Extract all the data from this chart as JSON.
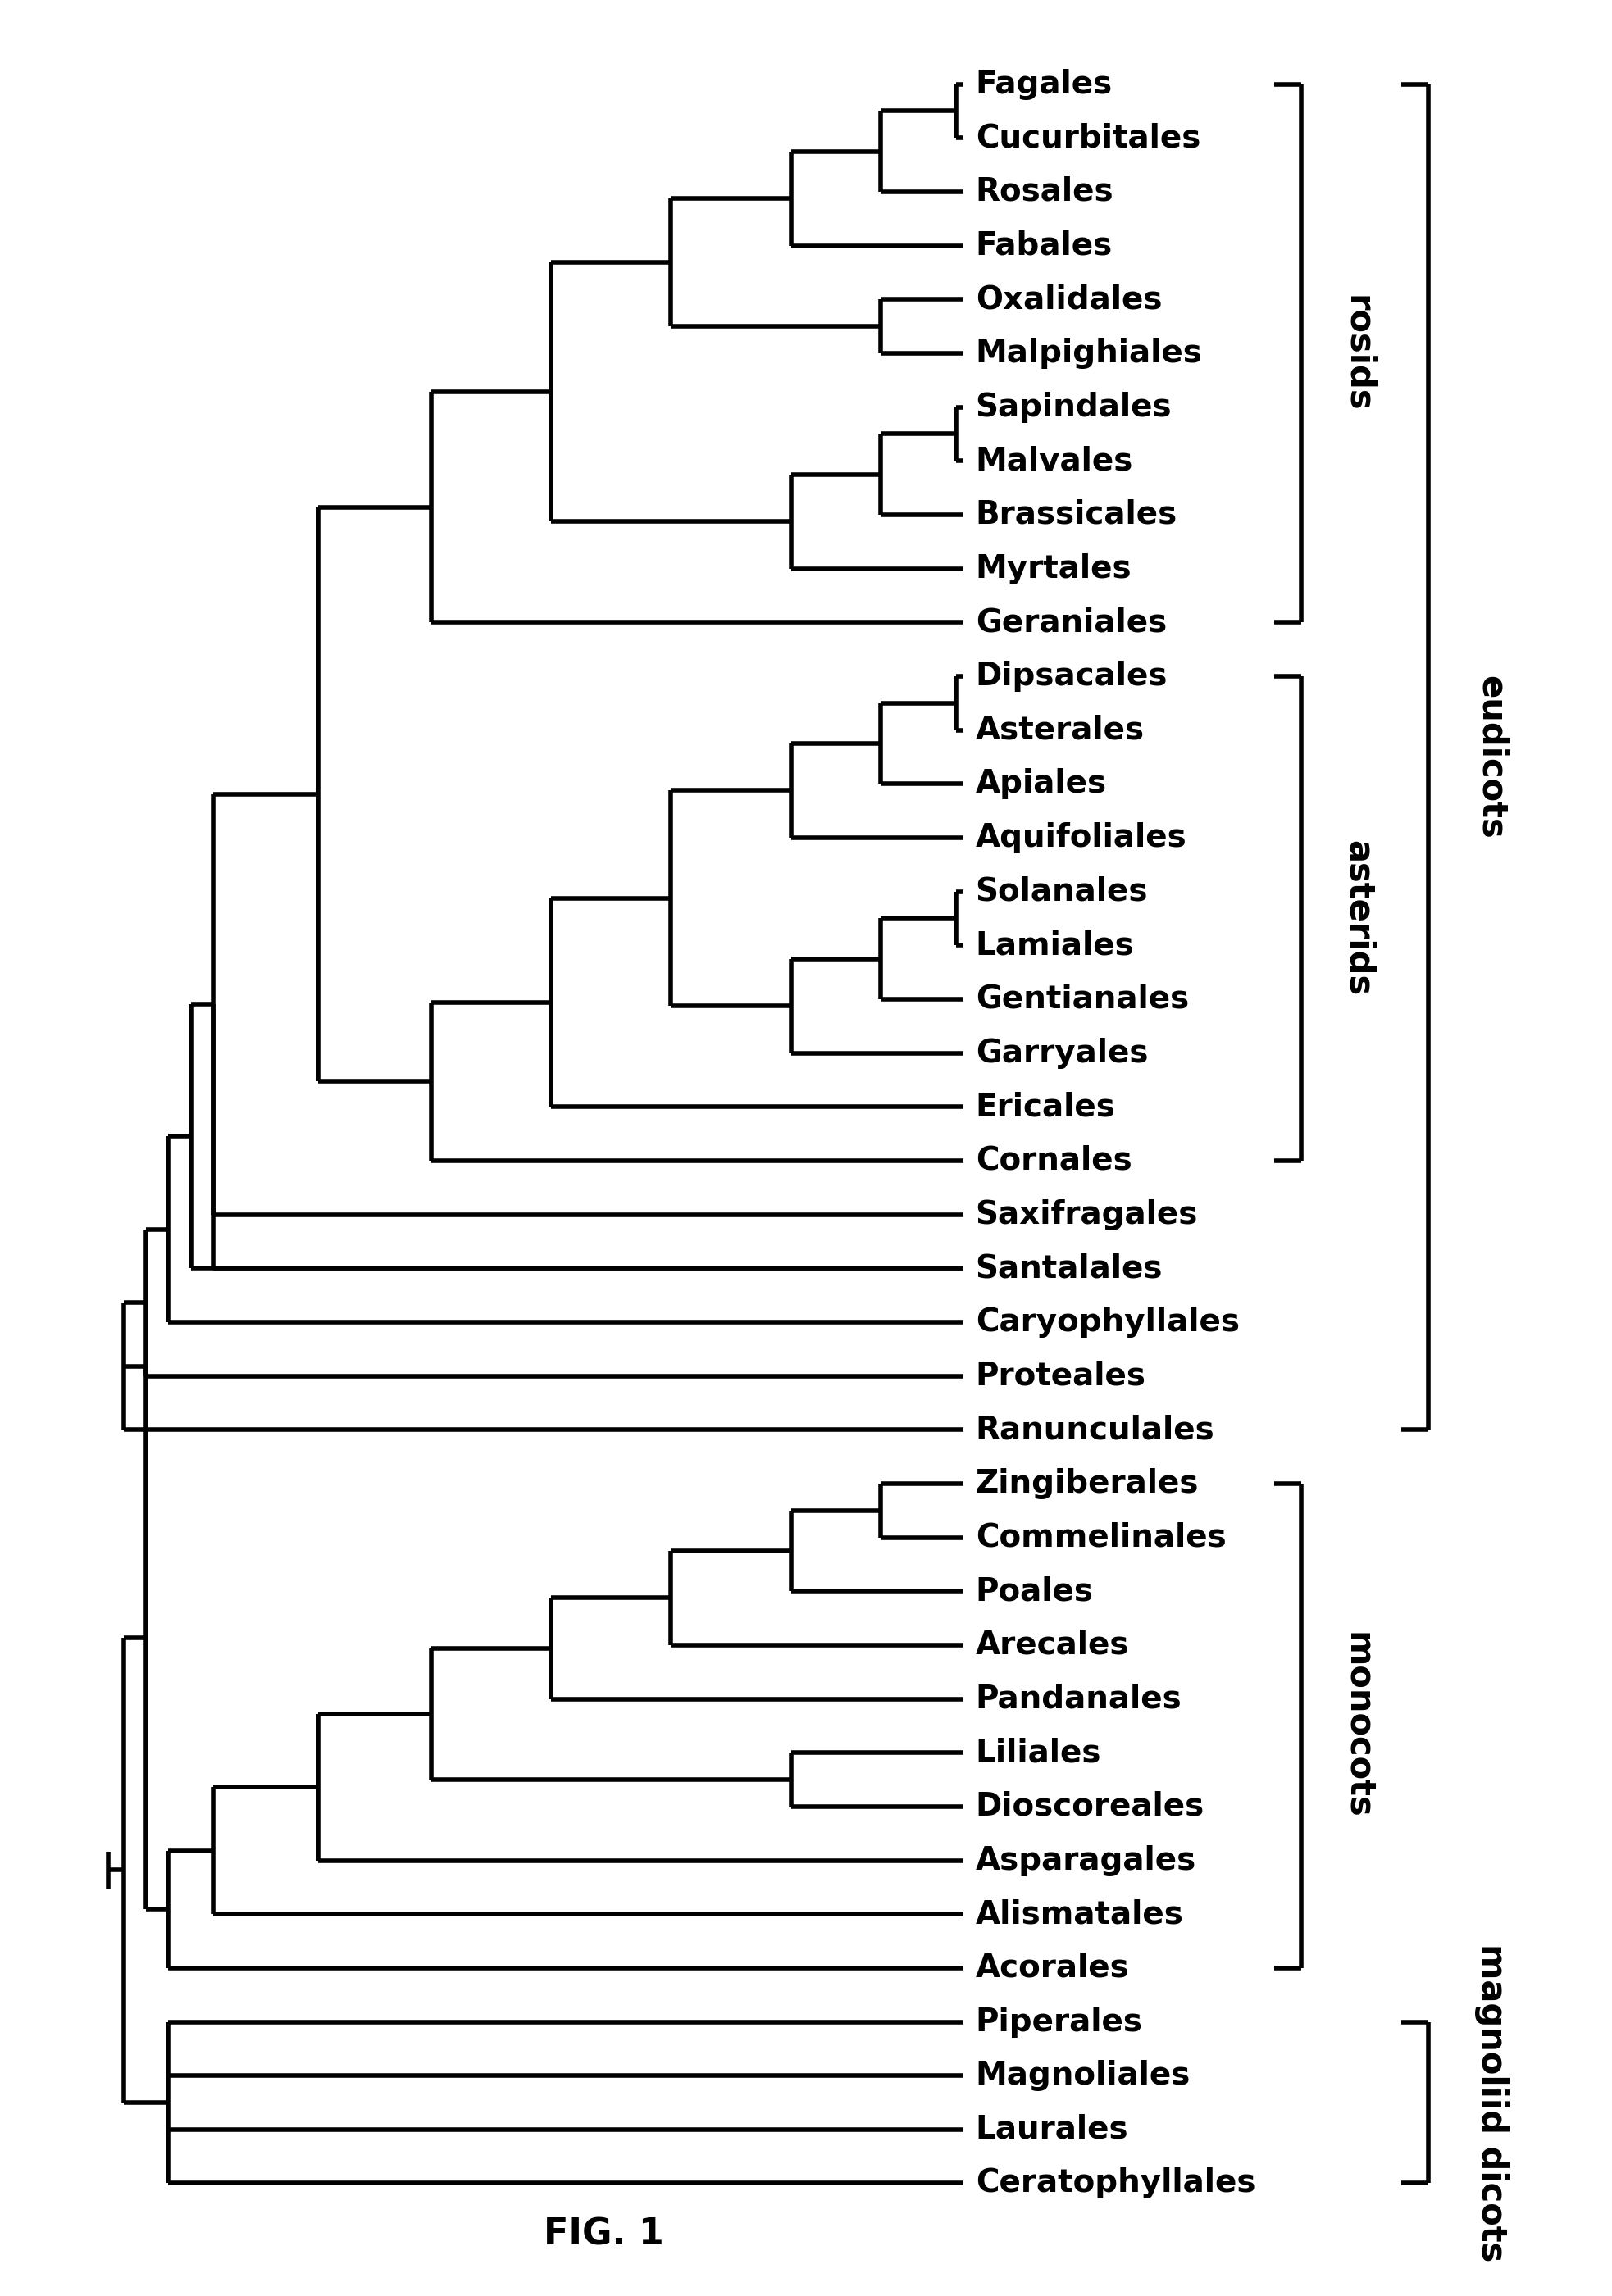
{
  "taxa": [
    "Fagales",
    "Cucurbitales",
    "Rosales",
    "Fabales",
    "Oxalidales",
    "Malpighiales",
    "Sapindales",
    "Malvales",
    "Brassicales",
    "Myrtales",
    "Geraniales",
    "Dipsacales",
    "Asterales",
    "Apiales",
    "Aquifoliales",
    "Solanales",
    "Lamiales",
    "Gentianales",
    "Garryales",
    "Ericales",
    "Cornales",
    "Saxifragales",
    "Santalales",
    "Caryophyllales",
    "Proteales",
    "Ranunculales",
    "Zingiberales",
    "Commelinales",
    "Poales",
    "Arecales",
    "Pandanales",
    "Liliales",
    "Dioscoreales",
    "Asparagales",
    "Alismatales",
    "Acorales",
    "Piperales",
    "Magnoliales",
    "Laurales",
    "Ceratophyllales"
  ],
  "figure_label": "FIG. 1",
  "lw": 4.0,
  "label_fontsize": 28,
  "annot_fontsize": 30
}
